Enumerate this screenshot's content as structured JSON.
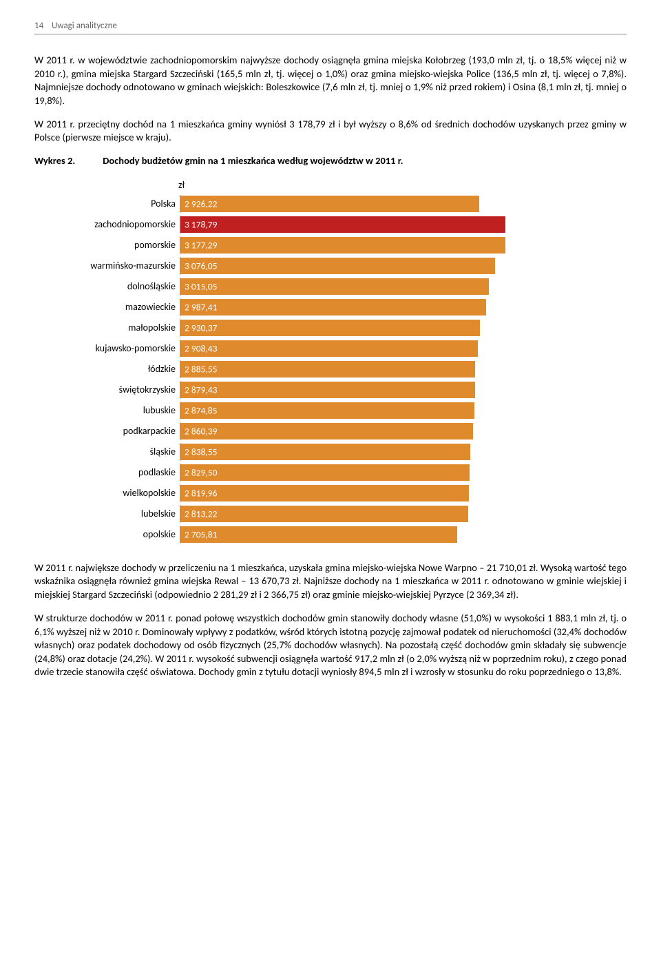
{
  "header": {
    "page_num": "14",
    "section": "Uwagi analityczne"
  },
  "para1": "W 2011 r. w województwie zachodniopomorskim najwyższe dochody osiągnęła gmina miejska Kołobrzeg (193,0 mln zł, tj. o 18,5% więcej niż w 2010 r.), gmina miejska Stargard Szczeciński (165,5 mln zł, tj. więcej o 1,0%) oraz gmina miejsko-wiejska Police (136,5 mln zł, tj. więcej o 7,8%). Najmniejsze dochody odnotowano w gminach wiejskich: Boleszkowice (7,6 mln zł, tj. mniej o 1,9% niż przed rokiem) i Osina (8,1 mln zł, tj. mniej o 19,8%).",
  "para2": "W 2011 r. przeciętny dochód na 1 mieszkańca gminy wyniósł 3 178,79 zł i był wyższy o 8,6% od średnich dochodów uzyskanych przez gminy w Polsce (pierwsze miejsce w kraju).",
  "chart": {
    "label": "Wykres 2.",
    "title": "Dochody budżetów gmin na 1 mieszkańca według województw w 2011 r.",
    "unit": "zł",
    "max_value": 3300,
    "bar_default_color": "#e08a2e",
    "bar_highlight_color": "#c02020",
    "text_color": "#ffffff",
    "rows": [
      {
        "label": "Polska",
        "value": 2926.22,
        "display": "2 926,22",
        "highlight": false
      },
      {
        "label": "zachodniopomorskie",
        "value": 3178.79,
        "display": "3 178,79",
        "highlight": true
      },
      {
        "label": "pomorskie",
        "value": 3177.29,
        "display": "3 177,29",
        "highlight": false
      },
      {
        "label": "warmińsko-mazurskie",
        "value": 3076.05,
        "display": "3 076,05",
        "highlight": false
      },
      {
        "label": "dolnośląskie",
        "value": 3015.05,
        "display": "3 015,05",
        "highlight": false
      },
      {
        "label": "mazowieckie",
        "value": 2987.41,
        "display": "2 987,41",
        "highlight": false
      },
      {
        "label": "małopolskie",
        "value": 2930.37,
        "display": "2 930,37",
        "highlight": false
      },
      {
        "label": "kujawsko-pomorskie",
        "value": 2908.43,
        "display": "2 908,43",
        "highlight": false
      },
      {
        "label": "łódzkie",
        "value": 2885.55,
        "display": "2 885,55",
        "highlight": false
      },
      {
        "label": "świętokrzyskie",
        "value": 2879.43,
        "display": "2 879,43",
        "highlight": false
      },
      {
        "label": "lubuskie",
        "value": 2874.85,
        "display": "2 874,85",
        "highlight": false
      },
      {
        "label": "podkarpackie",
        "value": 2860.39,
        "display": "2 860,39",
        "highlight": false
      },
      {
        "label": "śląskie",
        "value": 2838.55,
        "display": "2 838,55",
        "highlight": false
      },
      {
        "label": "podlaskie",
        "value": 2829.5,
        "display": "2 829,50",
        "highlight": false
      },
      {
        "label": "wielkopolskie",
        "value": 2819.96,
        "display": "2 819,96",
        "highlight": false
      },
      {
        "label": "lubelskie",
        "value": 2813.22,
        "display": "2 813,22",
        "highlight": false
      },
      {
        "label": "opolskie",
        "value": 2705.81,
        "display": "2 705,81",
        "highlight": false
      }
    ]
  },
  "para3": "W 2011 r. największe dochody w przeliczeniu na 1 mieszkańca, uzyskała gmina miejsko-wiejska Nowe Warpno – 21 710,01 zł. Wysoką wartość tego wskaźnika osiągnęła również gmina wiejska Rewal – 13 670,73 zł. Najniższe dochody na 1 mieszkańca w 2011 r. odnotowano w gminie wiejskiej i miejskiej Stargard Szczeciński (odpowiednio 2 281,29 zł i 2 366,75 zł) oraz gminie miejsko-wiejskiej Pyrzyce (2 369,34 zł).",
  "para4": "W strukturze dochodów w 2011 r. ponad połowę wszystkich dochodów gmin stanowiły dochody własne (51,0%) w wysokości 1 883,1 mln zł, tj. o 6,1% wyższej niż w 2010 r. Dominowały wpływy z podatków, wśród których istotną pozycję zajmował podatek od nieruchomości (32,4% dochodów własnych) oraz podatek dochodowy od osób fizycznych (25,7% dochodów własnych). Na pozostałą część dochodów gmin składały się subwencje (24,8%) oraz dotacje (24,2%). W 2011 r. wysokość subwencji osiągnęła wartość 917,2 mln zł (o 2,0% wyższą niż w poprzednim roku), z czego ponad dwie trzecie stanowiła część oświatowa. Dochody gmin z tytułu dotacji wyniosły 894,5 mln zł i wzrosły w stosunku do roku poprzedniego o 13,8%."
}
